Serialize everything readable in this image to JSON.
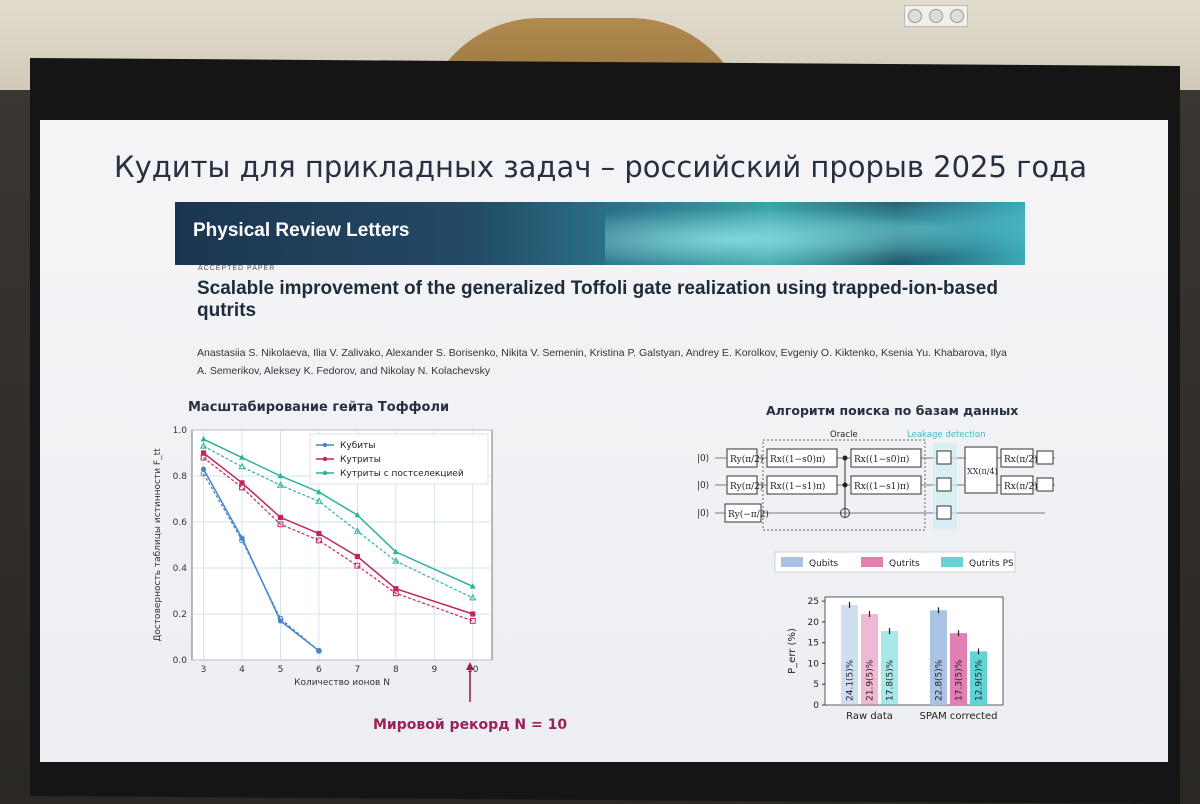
{
  "slide": {
    "title": "Кудиты для прикладных задач – российский прорыв 2025 года",
    "journal": "Physical Review Letters",
    "accepted_label": "ACCEPTED PAPER",
    "paper_title": "Scalable improvement of the generalized Toffoli gate realization using trapped-ion-based qutrits",
    "authors": "Anastasiia S. Nikolaeva, Ilia V. Zalivako, Alexander S. Borisenko, Nikita V. Semenin, Kristina P. Galstyan, Andrey E. Korolkov, Evgeniy O. Kiktenko, Ksenia Yu. Khabarova, Ilya A. Semerikov, Aleksey K. Fedorov, and Nikolay N. Kolachevsky",
    "left_section": "Масштабирование гейта Тоффоли",
    "right_section": "Алгоритм поиска по базам данных",
    "record_note": "Мировой рекорд N = 10"
  },
  "circuit": {
    "oracle_label": "Oracle",
    "leakage_label": "Leakage detection",
    "kets": [
      "|0⟩",
      "|0⟩",
      "|0⟩"
    ],
    "xx_label": "XX(π/4)"
  },
  "chart_data": [
    {
      "type": "line",
      "xlabel": "Количество ионов N",
      "ylabel": "Достоверность таблицы истинности F_tt",
      "xlim": [
        2.7,
        10.5
      ],
      "ylim": [
        0,
        1.0
      ],
      "x_ticks": [
        3,
        4,
        5,
        6,
        7,
        8,
        9,
        10
      ],
      "y_ticks": [
        "0.0",
        "0.2",
        "0.4",
        "0.6",
        "0.8",
        "1.0"
      ],
      "grid": true,
      "legend": "top-right",
      "series": [
        {
          "name": "Кубиты",
          "color": "#4a86c5",
          "x": [
            3,
            4,
            5,
            6
          ],
          "y": [
            0.83,
            0.53,
            0.17,
            0.04
          ],
          "dashed": [
            0.81,
            0.52,
            0.18,
            0.04
          ]
        },
        {
          "name": "Кутриты",
          "color": "#c0265f",
          "x": [
            3,
            4,
            5,
            6,
            7,
            8,
            10
          ],
          "y": [
            0.9,
            0.77,
            0.62,
            0.55,
            0.45,
            0.31,
            0.2
          ],
          "dashed": [
            0.88,
            0.75,
            0.59,
            0.52,
            0.41,
            0.29,
            0.17
          ]
        },
        {
          "name": "Кутриты с постселекцией",
          "color": "#2bb39a",
          "x": [
            3,
            4,
            5,
            6,
            7,
            8,
            10
          ],
          "y": [
            0.96,
            0.88,
            0.8,
            0.73,
            0.63,
            0.47,
            0.32
          ],
          "dashed": [
            0.93,
            0.84,
            0.76,
            0.69,
            0.56,
            0.43,
            0.27
          ]
        }
      ]
    },
    {
      "type": "bar",
      "categories": [
        "Raw data",
        "SPAM corrected"
      ],
      "ylabel": "P_err (%)",
      "ylim": [
        0,
        26
      ],
      "y_ticks": [
        0,
        5,
        10,
        15,
        20,
        25
      ],
      "legend": "top",
      "series": [
        {
          "name": "Qubits",
          "color": "#a9c2e6",
          "values": [
            24.1,
            22.8
          ],
          "labels": [
            "24.1(5)%",
            "22.8(5)%"
          ]
        },
        {
          "name": "Qutrits",
          "color": "#e27fb3",
          "values": [
            21.9,
            17.3
          ],
          "labels": [
            "21.9(5)%",
            "17.3(5)%"
          ]
        },
        {
          "name": "Qutrits PS",
          "color": "#62d3d6",
          "values": [
            17.8,
            12.9
          ],
          "labels": [
            "17.8(5)%",
            "12.9(5)%"
          ]
        }
      ]
    }
  ]
}
